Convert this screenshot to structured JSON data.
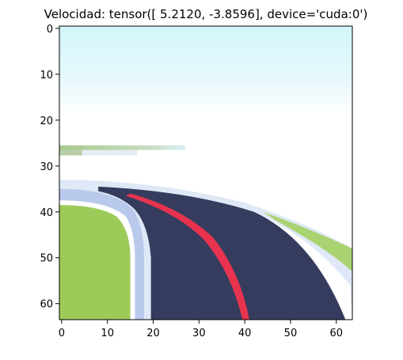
{
  "chart_data": {
    "type": "image",
    "title": "Velocidad: tensor([ 5.2120, -3.8596], device='cuda:0')",
    "xlim": [
      -0.5,
      63.5
    ],
    "ylim": [
      63.5,
      -0.5
    ],
    "xticks": [
      0,
      10,
      20,
      30,
      40,
      50,
      60
    ],
    "yticks": [
      0,
      10,
      20,
      30,
      40,
      50,
      60
    ]
  }
}
